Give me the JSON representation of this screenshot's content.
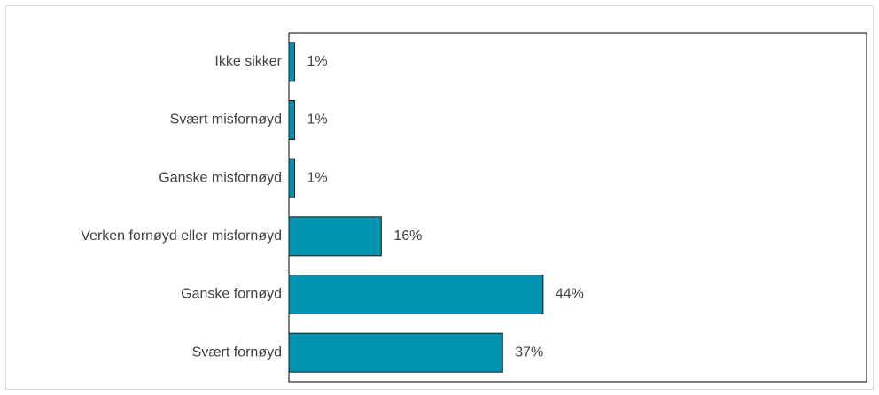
{
  "chart_data": {
    "type": "bar",
    "orientation": "horizontal",
    "categories": [
      "Ikke sikker",
      "Svært misfornøyd",
      "Ganske misfornøyd",
      "Verken fornøyd eller misfornøyd",
      "Ganske fornøyd",
      "Svært fornøyd"
    ],
    "values": [
      1,
      1,
      1,
      16,
      44,
      37
    ],
    "value_labels": [
      "1%",
      "1%",
      "1%",
      "16%",
      "44%",
      "37%"
    ],
    "unit": "%",
    "xlim": [
      0,
      100
    ],
    "grid": false,
    "legend": "none",
    "colors": {
      "bar": "#0092b0",
      "bar_stroke": "#1a1a1a",
      "text": "#404040",
      "axis": "#000000"
    }
  }
}
